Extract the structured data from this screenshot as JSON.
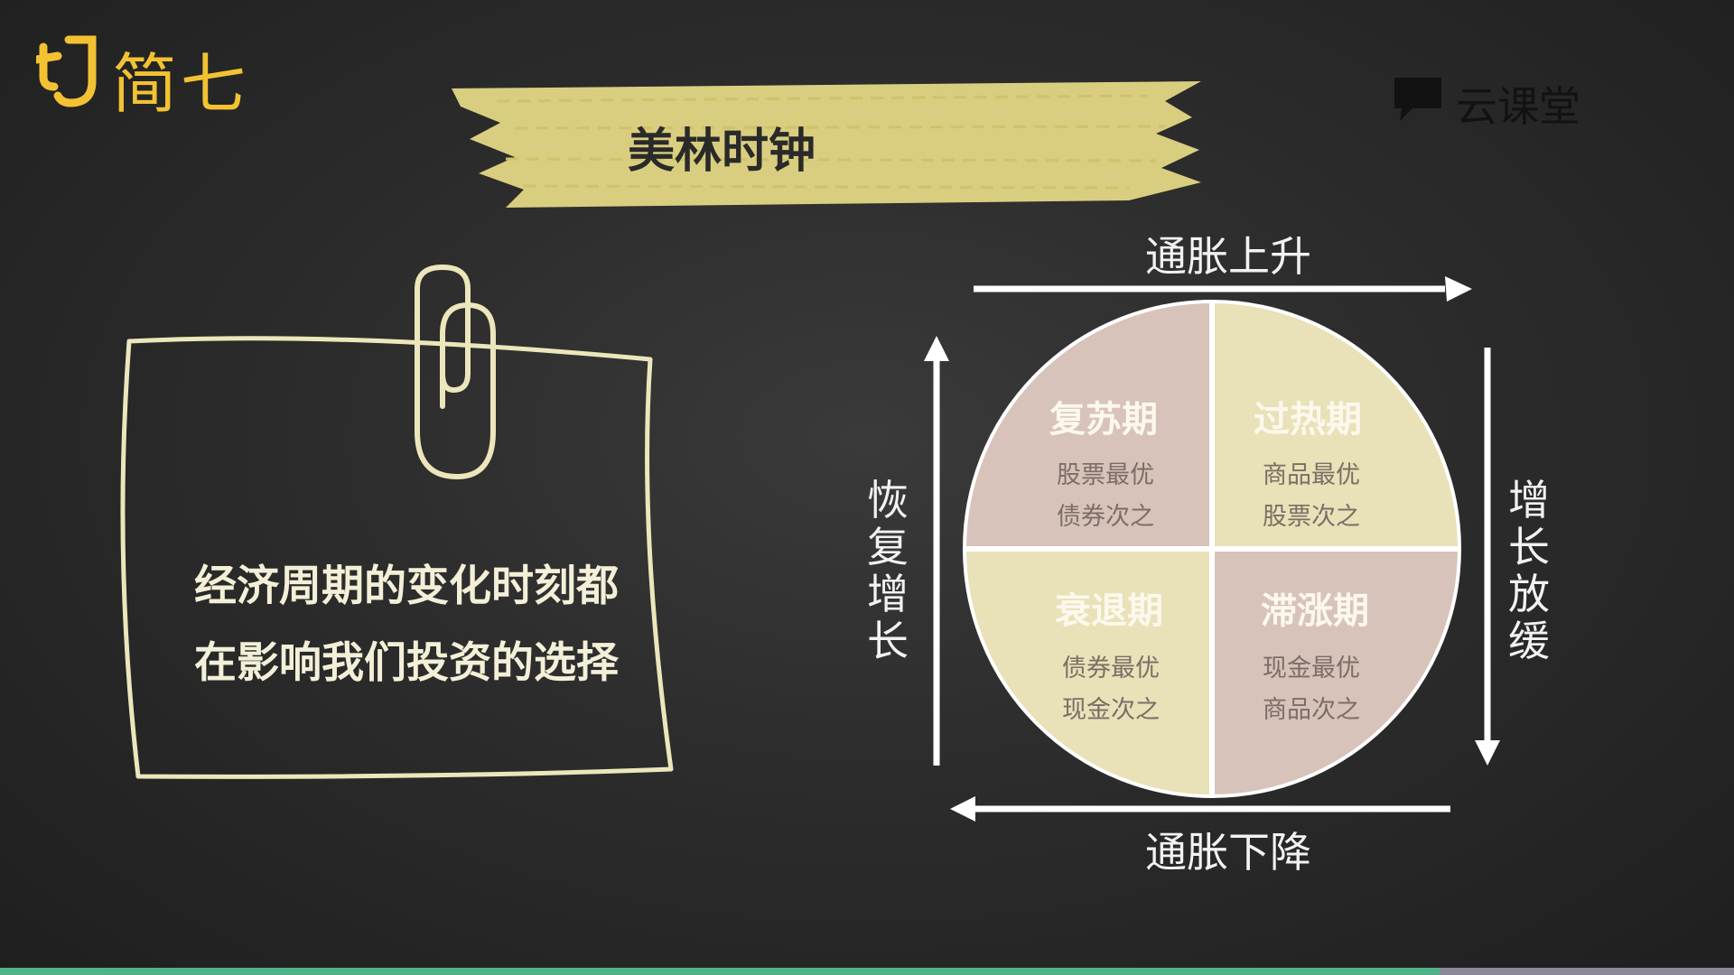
{
  "logo": {
    "text": "简七"
  },
  "watermark": {
    "text": "云课堂"
  },
  "title": "美林时钟",
  "note": {
    "lines": [
      "经济周期的变化时刻都",
      "在影响我们投资的选择"
    ]
  },
  "diagram": {
    "top_label": "通胀上升",
    "bottom_label": "通胀下降",
    "left_label": [
      "恢",
      "复",
      "增",
      "长"
    ],
    "right_label": [
      "增",
      "长",
      "放",
      "缓"
    ],
    "quadrants": [
      {
        "title": "复苏期",
        "line1": "股票最优",
        "line2": "债券次之",
        "color": "#d8c3ba"
      },
      {
        "title": "过热期",
        "line1": "商品最优",
        "line2": "股票次之",
        "color": "#e9e1b8"
      },
      {
        "title": "衰退期",
        "line1": "债券最优",
        "line2": "现金次之",
        "color": "#e9e1b8"
      },
      {
        "title": "滞涨期",
        "line1": "现金最优",
        "line2": "商品次之",
        "color": "#d8c3ba"
      }
    ]
  },
  "progress": {
    "fraction": 0.83
  }
}
